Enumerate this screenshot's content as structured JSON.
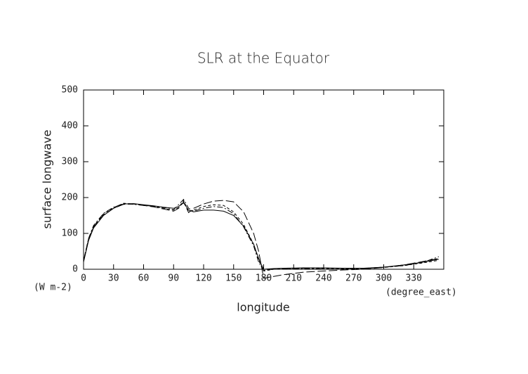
{
  "chart_data": {
    "type": "line",
    "title": "SLR at the Equator",
    "y_label": "surface longwave",
    "y_unit": "(W m-2)",
    "x_label": "longitude",
    "x_unit": "(degree_east)",
    "x": [
      0,
      5,
      10,
      20,
      30,
      40,
      50,
      60,
      70,
      80,
      90,
      95,
      100,
      105,
      110,
      120,
      130,
      140,
      150,
      160,
      170,
      175,
      180,
      190,
      200,
      220,
      240,
      260,
      280,
      300,
      320,
      340,
      355
    ],
    "series": [
      {
        "color": "#000000",
        "dash": "none",
        "values": [
          20,
          80,
          115,
          150,
          170,
          182,
          183,
          180,
          177,
          173,
          170,
          175,
          185,
          165,
          160,
          165,
          165,
          162,
          150,
          120,
          70,
          30,
          0,
          2,
          3,
          4,
          4,
          3,
          3,
          6,
          12,
          20,
          28
        ]
      },
      {
        "color": "#000000",
        "dash": "4 3",
        "values": [
          25,
          85,
          120,
          155,
          172,
          184,
          182,
          179,
          175,
          170,
          165,
          172,
          192,
          160,
          165,
          175,
          180,
          178,
          160,
          125,
          70,
          25,
          -5,
          0,
          2,
          3,
          2,
          1,
          2,
          5,
          10,
          18,
          25
        ]
      },
      {
        "color": "#000000",
        "dash": "12 4",
        "values": [
          22,
          82,
          118,
          152,
          170,
          181,
          182,
          178,
          174,
          168,
          162,
          170,
          188,
          158,
          170,
          182,
          190,
          192,
          188,
          160,
          100,
          50,
          -25,
          -20,
          -15,
          -8,
          -5,
          -2,
          0,
          5,
          12,
          22,
          30
        ]
      },
      {
        "color": "#000000",
        "dash": "8 3 2 3",
        "values": [
          24,
          86,
          122,
          156,
          173,
          183,
          181,
          178,
          176,
          172,
          166,
          180,
          195,
          170,
          162,
          170,
          175,
          172,
          155,
          118,
          65,
          20,
          -3,
          0,
          1,
          2,
          1,
          0,
          2,
          6,
          10,
          20,
          35
        ]
      }
    ],
    "xlim": [
      0,
      360
    ],
    "xticks": [
      0,
      30,
      60,
      90,
      120,
      150,
      180,
      210,
      240,
      270,
      300,
      330
    ],
    "ylim": [
      0,
      500
    ],
    "yticks": [
      0,
      100,
      200,
      300,
      400,
      500
    ]
  }
}
